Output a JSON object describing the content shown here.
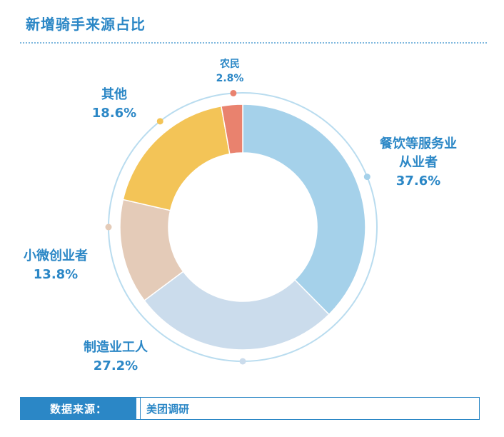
{
  "title": "新增骑手来源占比",
  "footer": {
    "label": "数据来源：",
    "value": "美团调研"
  },
  "colors": {
    "accent": "#2b87c6",
    "ring": "#b9dcef"
  },
  "chart_data": {
    "type": "pie",
    "variant": "donut",
    "title": "新增骑手来源占比",
    "series": [
      {
        "name": "",
        "slices": [
          {
            "label": "餐饮等服务业从业者",
            "label_lines": [
              "餐饮等服务业",
              "从业者"
            ],
            "pct_text": "37.6%",
            "value": 37.6,
            "color": "#a5d1ea"
          },
          {
            "label": "制造业工人",
            "label_lines": [
              "制造业工人"
            ],
            "pct_text": "27.2%",
            "value": 27.2,
            "color": "#cbdcec"
          },
          {
            "label": "小微创业者",
            "label_lines": [
              "小微创业者"
            ],
            "pct_text": "13.8%",
            "value": 13.8,
            "color": "#e4cbb8"
          },
          {
            "label": "其他",
            "label_lines": [
              "其他"
            ],
            "pct_text": "18.6%",
            "value": 18.6,
            "color": "#f3c457"
          },
          {
            "label": "农民",
            "label_lines": [
              "农民"
            ],
            "pct_text": "2.8%",
            "value": 2.8,
            "color": "#e9826e"
          }
        ]
      }
    ],
    "legend": "none",
    "start": "top, clockwise"
  }
}
